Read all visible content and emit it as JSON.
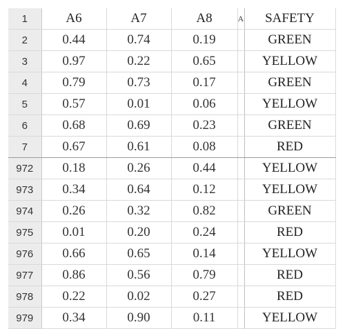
{
  "header": {
    "row_number": "1",
    "columns": [
      "A6",
      "A7",
      "A8",
      "A",
      "SAFETY"
    ]
  },
  "rows": [
    {
      "row_number": "2",
      "a6": "0.44",
      "a7": "0.74",
      "a8": "0.19",
      "safety": "GREEN"
    },
    {
      "row_number": "3",
      "a6": "0.97",
      "a7": "0.22",
      "a8": "0.65",
      "safety": "YELLOW"
    },
    {
      "row_number": "4",
      "a6": "0.79",
      "a7": "0.73",
      "a8": "0.17",
      "safety": "GREEN"
    },
    {
      "row_number": "5",
      "a6": "0.57",
      "a7": "0.01",
      "a8": "0.06",
      "safety": "YELLOW"
    },
    {
      "row_number": "6",
      "a6": "0.68",
      "a7": "0.69",
      "a8": "0.23",
      "safety": "GREEN"
    },
    {
      "row_number": "7",
      "a6": "0.67",
      "a7": "0.61",
      "a8": "0.08",
      "safety": "RED"
    },
    {
      "row_number": "972",
      "a6": "0.18",
      "a7": "0.26",
      "a8": "0.44",
      "safety": "YELLOW"
    },
    {
      "row_number": "973",
      "a6": "0.34",
      "a7": "0.64",
      "a8": "0.12",
      "safety": "YELLOW"
    },
    {
      "row_number": "974",
      "a6": "0.26",
      "a7": "0.32",
      "a8": "0.82",
      "safety": "GREEN"
    },
    {
      "row_number": "975",
      "a6": "0.01",
      "a7": "0.20",
      "a8": "0.24",
      "safety": "RED"
    },
    {
      "row_number": "976",
      "a6": "0.66",
      "a7": "0.65",
      "a8": "0.14",
      "safety": "YELLOW"
    },
    {
      "row_number": "977",
      "a6": "0.86",
      "a7": "0.56",
      "a8": "0.79",
      "safety": "RED"
    },
    {
      "row_number": "978",
      "a6": "0.22",
      "a7": "0.02",
      "a8": "0.27",
      "safety": "RED"
    },
    {
      "row_number": "979",
      "a6": "0.34",
      "a7": "0.90",
      "a8": "0.11",
      "safety": "YELLOW"
    }
  ]
}
